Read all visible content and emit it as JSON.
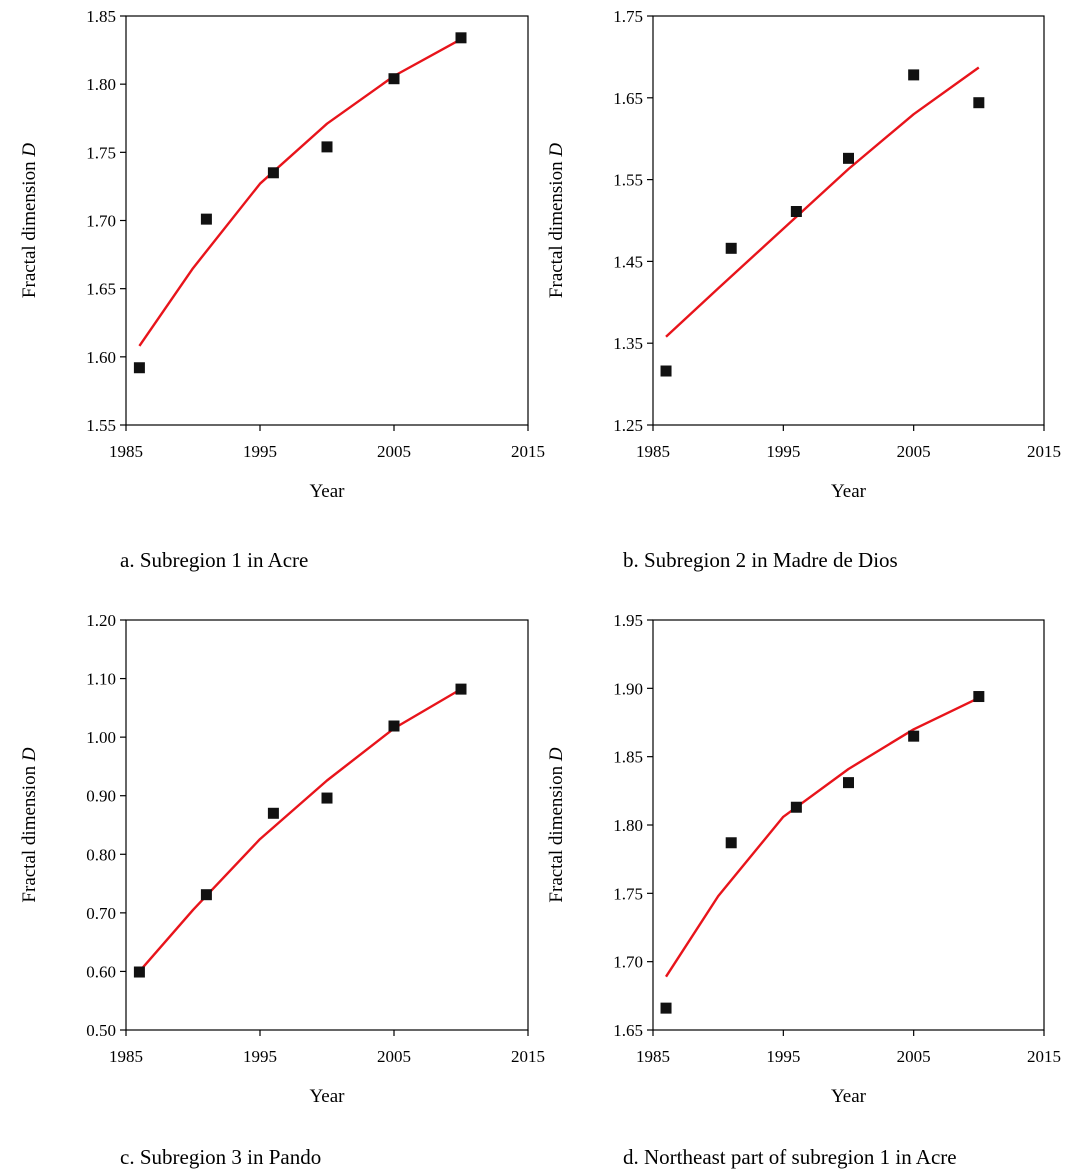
{
  "chart_data": [
    {
      "type": "scatter",
      "caption": "a. Subregion 1 in Acre",
      "xlabel": "Year",
      "ylabel": "Fractal dimension ",
      "ylabel_italic": "D",
      "xlim": [
        1985,
        2015
      ],
      "ylim": [
        1.55,
        1.85
      ],
      "xticks": [
        "1985",
        "1995",
        "2005",
        "2015"
      ],
      "yticks": [
        "1.55",
        "1.60",
        "1.65",
        "1.70",
        "1.75",
        "1.80",
        "1.85"
      ],
      "grid": false,
      "marker_color": "#111111",
      "fit_color": "#e8141b",
      "points": {
        "x": [
          1986,
          1991,
          1996,
          2000,
          2005,
          2010
        ],
        "y": [
          1.592,
          1.701,
          1.735,
          1.754,
          1.804,
          1.834
        ]
      },
      "fit": {
        "x": [
          1986,
          1990,
          1995,
          2000,
          2005,
          2010
        ],
        "y": [
          1.608,
          1.665,
          1.727,
          1.771,
          1.806,
          1.833
        ]
      }
    },
    {
      "type": "scatter",
      "caption": "b. Subregion 2 in Madre de Dios",
      "xlabel": "Year",
      "ylabel": "Fractal dimension ",
      "ylabel_italic": "D",
      "xlim": [
        1985,
        2015
      ],
      "ylim": [
        1.25,
        1.75
      ],
      "xticks": [
        "1985",
        "1995",
        "2005",
        "2015"
      ],
      "yticks": [
        "1.25",
        "1.35",
        "1.45",
        "1.55",
        "1.65",
        "1.75"
      ],
      "grid": false,
      "marker_color": "#111111",
      "fit_color": "#e8141b",
      "points": {
        "x": [
          1986,
          1991,
          1996,
          2000,
          2005,
          2010
        ],
        "y": [
          1.316,
          1.466,
          1.511,
          1.576,
          1.678,
          1.644
        ]
      },
      "fit": {
        "x": [
          1986,
          1990,
          1995,
          2000,
          2005,
          2010
        ],
        "y": [
          1.358,
          1.417,
          1.49,
          1.563,
          1.63,
          1.687
        ]
      }
    },
    {
      "type": "scatter",
      "caption": "c. Subregion 3 in Pando",
      "xlabel": "Year",
      "ylabel": "Fractal dimension ",
      "ylabel_italic": "D",
      "xlim": [
        1985,
        2015
      ],
      "ylim": [
        0.5,
        1.2
      ],
      "xticks": [
        "1985",
        "1995",
        "2005",
        "2015"
      ],
      "yticks": [
        "0.50",
        "0.60",
        "0.70",
        "0.80",
        "0.90",
        "1.00",
        "1.10",
        "1.20"
      ],
      "grid": false,
      "marker_color": "#111111",
      "fit_color": "#e8141b",
      "points": {
        "x": [
          1986,
          1991,
          1996,
          2000,
          2005,
          2010
        ],
        "y": [
          0.599,
          0.731,
          0.87,
          0.896,
          1.019,
          1.082
        ]
      },
      "fit": {
        "x": [
          1986,
          1990,
          1995,
          2000,
          2005,
          2010
        ],
        "y": [
          0.6,
          0.705,
          0.826,
          0.926,
          1.015,
          1.082
        ]
      }
    },
    {
      "type": "scatter",
      "caption": "d. Northeast part of subregion 1 in Acre",
      "xlabel": "Year",
      "ylabel": "Fractal dimension ",
      "ylabel_italic": "D",
      "xlim": [
        1985,
        2015
      ],
      "ylim": [
        1.65,
        1.95
      ],
      "xticks": [
        "1985",
        "1995",
        "2005",
        "2015"
      ],
      "yticks": [
        "1.65",
        "1.70",
        "1.75",
        "1.80",
        "1.85",
        "1.90",
        "1.95"
      ],
      "grid": false,
      "marker_color": "#111111",
      "fit_color": "#e8141b",
      "points": {
        "x": [
          1986,
          1991,
          1996,
          2000,
          2005,
          2010
        ],
        "y": [
          1.666,
          1.787,
          1.813,
          1.831,
          1.865,
          1.894
        ]
      },
      "fit": {
        "x": [
          1986,
          1990,
          1995,
          2000,
          2005,
          2010
        ],
        "y": [
          1.689,
          1.748,
          1.806,
          1.841,
          1.87,
          1.893
        ]
      }
    }
  ]
}
